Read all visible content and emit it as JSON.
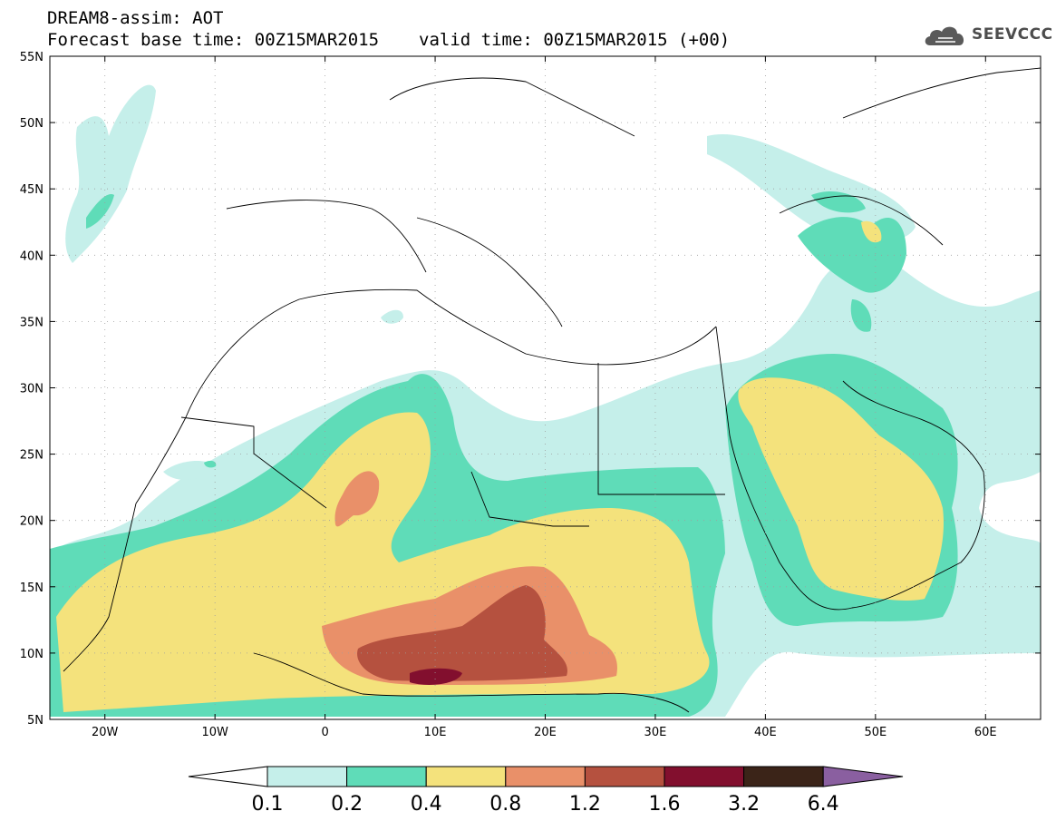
{
  "header": {
    "title": "DREAM8-assim: AOT",
    "base_time_label": "Forecast base time: 00Z15MAR2015",
    "valid_time_label": "valid time: 00Z15MAR2015 (+00)"
  },
  "logo": {
    "text": "SEEVCCC",
    "icon": "cloud-icon"
  },
  "axes": {
    "lat_labels": [
      "55N",
      "50N",
      "45N",
      "40N",
      "35N",
      "30N",
      "25N",
      "20N",
      "15N",
      "10N",
      "5N"
    ],
    "lon_labels": [
      "20W",
      "10W",
      "0",
      "10E",
      "20E",
      "30E",
      "40E",
      "50E",
      "60E"
    ]
  },
  "colorbar": {
    "levels": [
      "0.1",
      "0.2",
      "0.4",
      "0.8",
      "1.2",
      "1.6",
      "3.2",
      "6.4"
    ],
    "colors": [
      "#ffffff",
      "#c5efea",
      "#5fdcb8",
      "#f4e27c",
      "#e99069",
      "#b5513f",
      "#820f2e",
      "#3b2418",
      "#8a5fa0"
    ]
  },
  "map_colors": {
    "coast": "#000000",
    "c01": "#c5efea",
    "c02": "#5fdcb8",
    "c04": "#f4e27c",
    "c08": "#e99069",
    "c12": "#b5513f",
    "c16": "#820f2e"
  }
}
